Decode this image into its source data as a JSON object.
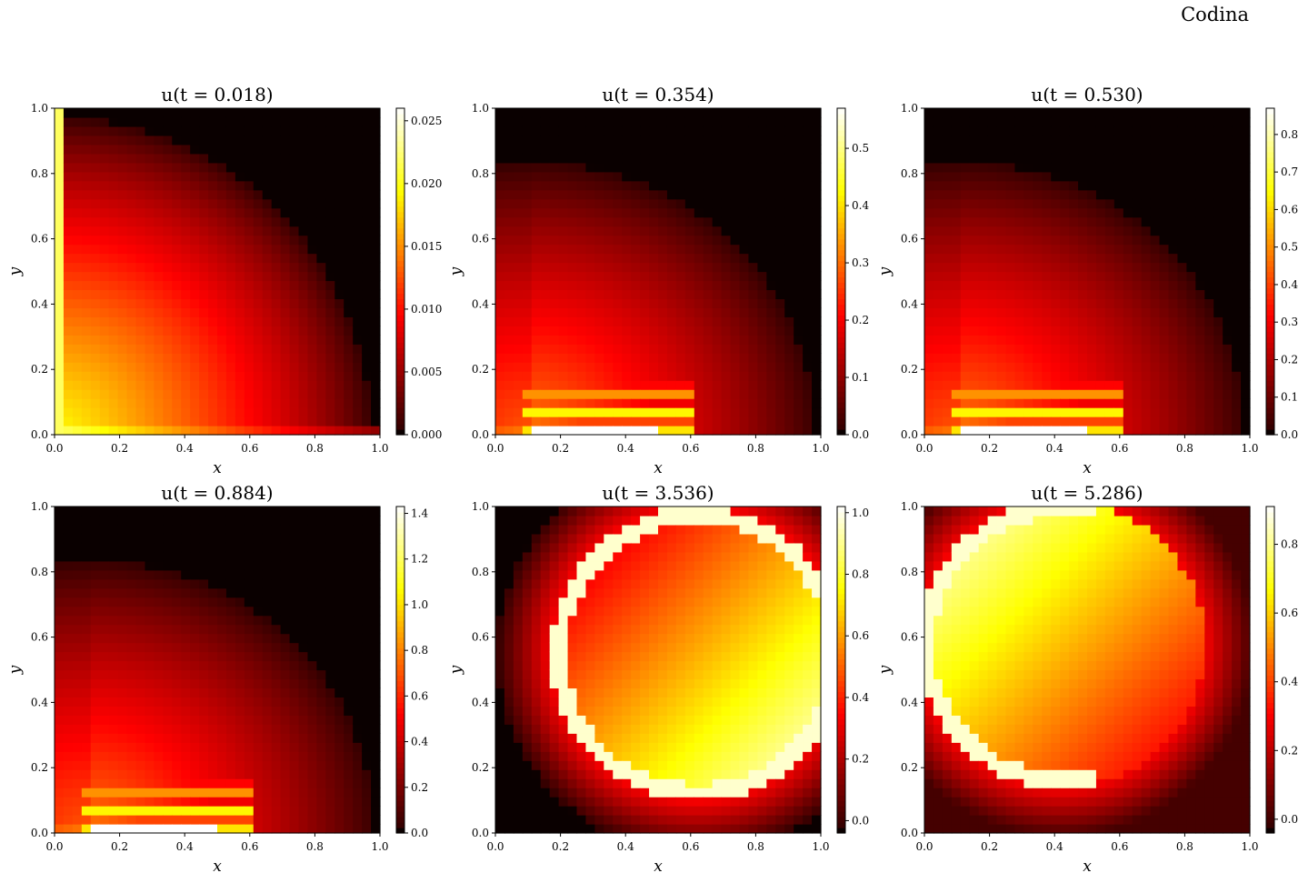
{
  "figure": {
    "suptitle": "Codina",
    "colormap": "hot"
  },
  "chart_data": [
    {
      "type": "heatmap",
      "title": "u(t = 0.018)",
      "xlabel": "x",
      "ylabel": "y",
      "xlim": [
        0,
        1
      ],
      "ylim": [
        0,
        1
      ],
      "xticks": [
        "0.0",
        "0.2",
        "0.4",
        "0.6",
        "0.8",
        "1.0"
      ],
      "yticks": [
        "0.0",
        "0.2",
        "0.4",
        "0.6",
        "0.8",
        "1.0"
      ],
      "colorbar": {
        "range": [
          0,
          0.026
        ],
        "ticks": [
          "0.000",
          "0.005",
          "0.010",
          "0.015",
          "0.020",
          "0.025"
        ],
        "tick_values": [
          0,
          0.005,
          0.01,
          0.015,
          0.02,
          0.025
        ]
      },
      "pattern": "corner-quarter-disc"
    },
    {
      "type": "heatmap",
      "title": "u(t = 0.354)",
      "xlabel": "x",
      "ylabel": "y",
      "xlim": [
        0,
        1
      ],
      "ylim": [
        0,
        1
      ],
      "xticks": [
        "0.0",
        "0.2",
        "0.4",
        "0.6",
        "0.8",
        "1.0"
      ],
      "yticks": [
        "0.0",
        "0.2",
        "0.4",
        "0.6",
        "0.8",
        "1.0"
      ],
      "colorbar": {
        "range": [
          0,
          0.57
        ],
        "ticks": [
          "0.0",
          "0.1",
          "0.2",
          "0.3",
          "0.4",
          "0.5"
        ],
        "tick_values": [
          0,
          0.1,
          0.2,
          0.3,
          0.4,
          0.5
        ]
      },
      "pattern": "stretched-bottom"
    },
    {
      "type": "heatmap",
      "title": "u(t = 0.530)",
      "xlabel": "x",
      "ylabel": "y",
      "xlim": [
        0,
        1
      ],
      "ylim": [
        0,
        1
      ],
      "xticks": [
        "0.0",
        "0.2",
        "0.4",
        "0.6",
        "0.8",
        "1.0"
      ],
      "yticks": [
        "0.0",
        "0.2",
        "0.4",
        "0.6",
        "0.8",
        "1.0"
      ],
      "colorbar": {
        "range": [
          0,
          0.87
        ],
        "ticks": [
          "0.0",
          "0.1",
          "0.2",
          "0.3",
          "0.4",
          "0.5",
          "0.6",
          "0.7",
          "0.8"
        ],
        "tick_values": [
          0,
          0.1,
          0.2,
          0.3,
          0.4,
          0.5,
          0.6,
          0.7,
          0.8
        ]
      },
      "pattern": "stretched-bottom"
    },
    {
      "type": "heatmap",
      "title": "u(t = 0.884)",
      "xlabel": "x",
      "ylabel": "y",
      "xlim": [
        0,
        1
      ],
      "ylim": [
        0,
        1
      ],
      "xticks": [
        "0.0",
        "0.2",
        "0.4",
        "0.6",
        "0.8",
        "1.0"
      ],
      "yticks": [
        "0.0",
        "0.2",
        "0.4",
        "0.6",
        "0.8",
        "1.0"
      ],
      "colorbar": {
        "range": [
          0,
          1.43
        ],
        "ticks": [
          "0.0",
          "0.2",
          "0.4",
          "0.6",
          "0.8",
          "1.0",
          "1.2",
          "1.4"
        ],
        "tick_values": [
          0,
          0.2,
          0.4,
          0.6,
          0.8,
          1.0,
          1.2,
          1.4
        ]
      },
      "pattern": "stretched-bottom"
    },
    {
      "type": "heatmap",
      "title": "u(t = 3.536)",
      "xlabel": "x",
      "ylabel": "y",
      "xlim": [
        0,
        1
      ],
      "ylim": [
        0,
        1
      ],
      "xticks": [
        "0.0",
        "0.2",
        "0.4",
        "0.6",
        "0.8",
        "1.0"
      ],
      "yticks": [
        "0.0",
        "0.2",
        "0.4",
        "0.6",
        "0.8",
        "1.0"
      ],
      "colorbar": {
        "range": [
          -0.04,
          1.02
        ],
        "ticks": [
          "0.0",
          "0.2",
          "0.4",
          "0.6",
          "0.8",
          "1.0"
        ],
        "tick_values": [
          0,
          0.2,
          0.4,
          0.6,
          0.8,
          1.0
        ]
      },
      "pattern": "disc-right"
    },
    {
      "type": "heatmap",
      "title": "u(t = 5.286)",
      "xlabel": "x",
      "ylabel": "y",
      "xlim": [
        0,
        1
      ],
      "ylim": [
        0,
        1
      ],
      "xticks": [
        "0.0",
        "0.2",
        "0.4",
        "0.6",
        "0.8",
        "1.0"
      ],
      "yticks": [
        "0.0",
        "0.2",
        "0.4",
        "0.6",
        "0.8",
        "1.0"
      ],
      "colorbar": {
        "range": [
          -0.04,
          0.91
        ],
        "ticks": [
          "0.0",
          "0.2",
          "0.4",
          "0.6",
          "0.8"
        ],
        "tick_values": [
          0,
          0.2,
          0.4,
          0.6,
          0.8
        ]
      },
      "pattern": "disc-left"
    }
  ]
}
